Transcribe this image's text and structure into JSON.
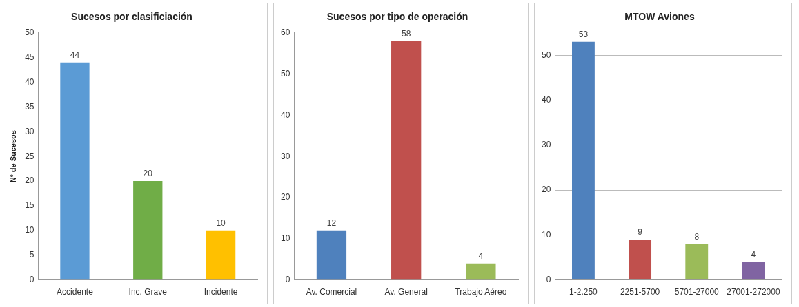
{
  "chart_data": [
    {
      "type": "bar",
      "title": "Sucesos por clasificiación",
      "ylabel": "Nº de Sucesos",
      "categories": [
        "Accidente",
        "Inc. Grave",
        "Incidente"
      ],
      "values": [
        44,
        20,
        10
      ],
      "colors": [
        "#5b9bd5",
        "#70ad47",
        "#ffc000"
      ],
      "ylim": [
        0,
        50
      ],
      "yticks": [
        0,
        5,
        10,
        15,
        20,
        25,
        30,
        35,
        40,
        45,
        50
      ],
      "data_labels": true
    },
    {
      "type": "bar",
      "title": "Sucesos por tipo de operación",
      "categories": [
        "Av. Comercial",
        "Av. General",
        "Trabajo Aéreo"
      ],
      "values": [
        12,
        58,
        4
      ],
      "colors": [
        "#4f81bd",
        "#c0504d",
        "#9bbb59"
      ],
      "ylim": [
        0,
        60
      ],
      "yticks": [
        0,
        10,
        20,
        30,
        40,
        50,
        60
      ],
      "data_labels": true
    },
    {
      "type": "bar",
      "title": "MTOW Aviones",
      "categories": [
        "1-2.250",
        "2251-5700",
        "5701-27000",
        "27001-272000"
      ],
      "values": [
        53,
        9,
        8,
        4
      ],
      "colors": [
        "#4f81bd",
        "#c0504d",
        "#9bbb59",
        "#8064a2"
      ],
      "ylim": [
        0,
        55
      ],
      "yticks": [
        0,
        10,
        20,
        30,
        40,
        50
      ],
      "grid": "y",
      "data_labels": true
    }
  ]
}
